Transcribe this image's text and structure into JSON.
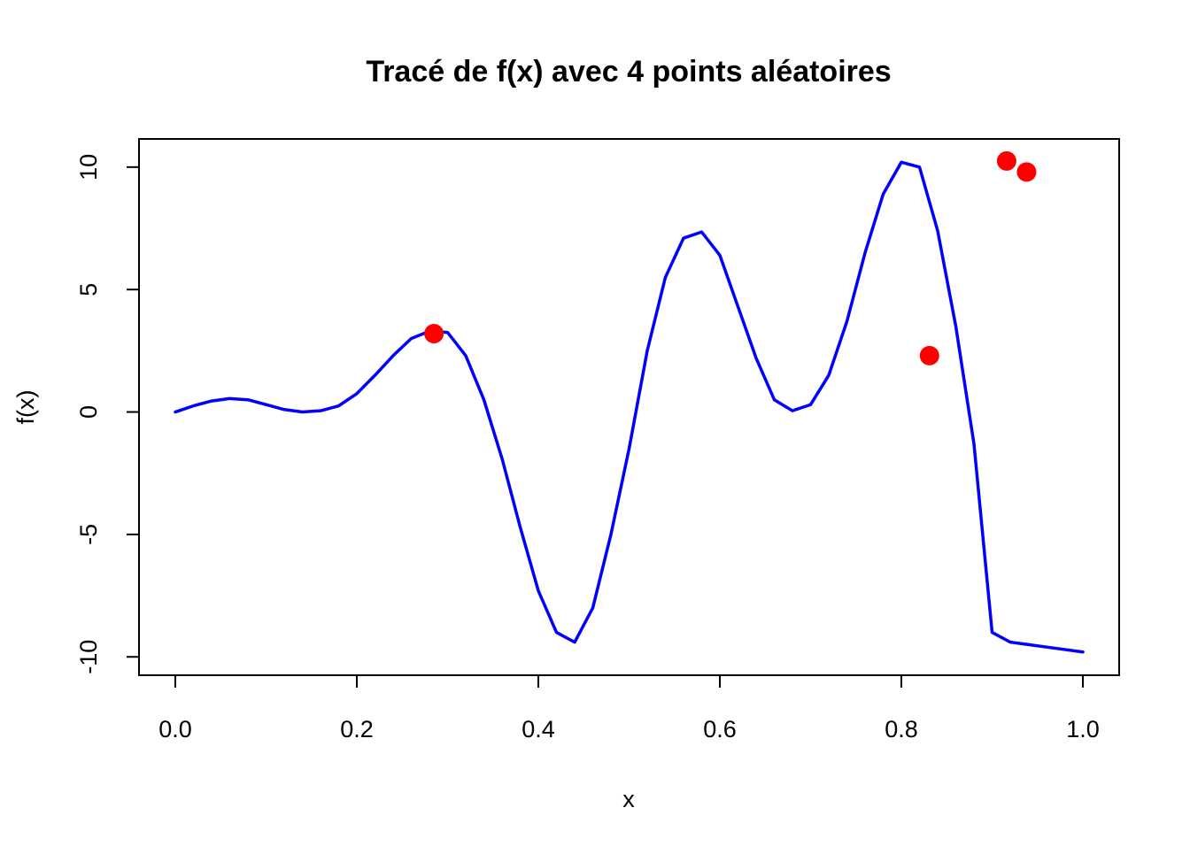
{
  "chart_data": {
    "type": "line",
    "title": "Tracé de f(x) avec 4 points aléatoires",
    "xlabel": "x",
    "ylabel": "f(x)",
    "xlim": [
      -0.04,
      1.04
    ],
    "ylim": [
      -10.75,
      11.15
    ],
    "grid": false,
    "x_ticks": [
      0.0,
      0.2,
      0.4,
      0.6,
      0.8,
      1.0
    ],
    "x_tick_labels": [
      "0.0",
      "0.2",
      "0.4",
      "0.6",
      "0.8",
      "1.0"
    ],
    "y_ticks": [
      -10,
      -5,
      0,
      5,
      10
    ],
    "y_tick_labels": [
      "-10",
      "-5",
      "0",
      "5",
      "10"
    ],
    "series": [
      {
        "style": "line",
        "color": "#0000ff",
        "x": [
          0.0,
          0.02,
          0.04,
          0.06,
          0.08,
          0.1,
          0.12,
          0.14,
          0.16,
          0.18,
          0.2,
          0.22,
          0.24,
          0.26,
          0.28,
          0.3,
          0.32,
          0.34,
          0.36,
          0.38,
          0.4,
          0.42,
          0.44,
          0.46,
          0.48,
          0.5,
          0.52,
          0.54,
          0.56,
          0.58,
          0.6,
          0.62,
          0.64,
          0.66,
          0.68,
          0.7,
          0.72,
          0.74,
          0.76,
          0.78,
          0.8,
          0.82,
          0.84,
          0.86,
          0.88,
          0.9,
          0.92,
          0.94,
          0.96,
          0.98,
          1.0
        ],
        "y": [
          0.0,
          0.25,
          0.45,
          0.55,
          0.5,
          0.3,
          0.1,
          0.0,
          0.05,
          0.25,
          0.75,
          1.5,
          2.3,
          3.0,
          3.3,
          3.25,
          2.3,
          0.5,
          -1.9,
          -4.7,
          -7.3,
          -9.0,
          -9.4,
          -8.0,
          -5.0,
          -1.5,
          2.5,
          5.5,
          7.1,
          7.35,
          6.4,
          4.3,
          2.2,
          0.5,
          0.05,
          0.3,
          1.5,
          3.7,
          6.5,
          8.9,
          10.2,
          10.0,
          7.4,
          3.5,
          -1.3,
          -9.0,
          -9.4,
          -9.5,
          -9.6,
          -9.7,
          -9.8
        ],
        "x_note_unused": []
      },
      {
        "style": "points",
        "color": "#ff0000",
        "x": [
          0.285,
          0.831,
          0.916,
          0.938
        ],
        "y": [
          3.2,
          2.3,
          10.25,
          9.8
        ]
      }
    ]
  }
}
